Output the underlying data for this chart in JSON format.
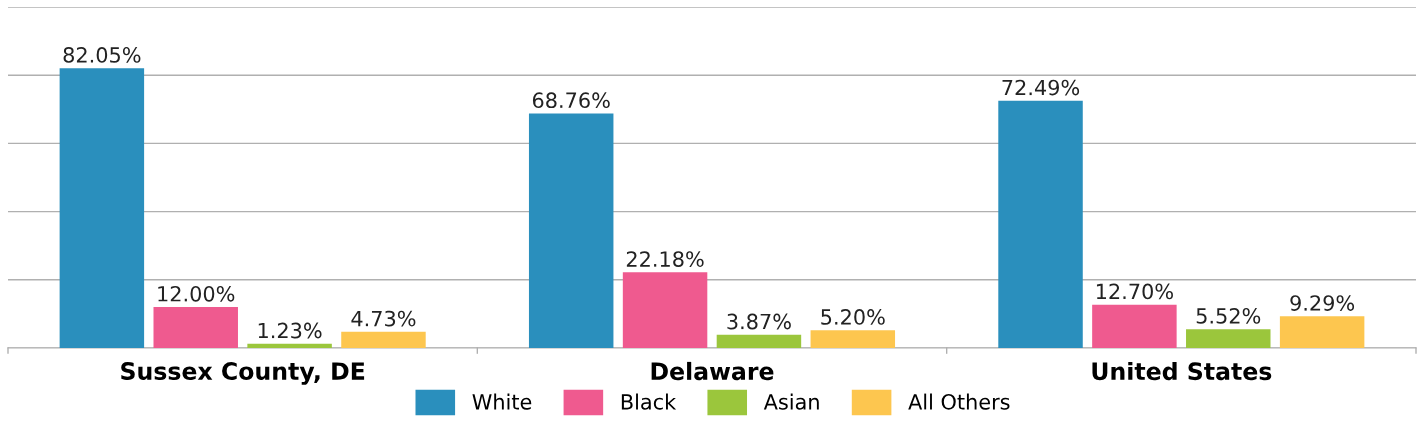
{
  "chart_data": {
    "type": "bar",
    "categories": [
      "Sussex County, DE",
      "Delaware",
      "United States"
    ],
    "series": [
      {
        "name": "White",
        "color": "#2a8fbd",
        "values": [
          82.05,
          68.76,
          72.49
        ],
        "value_labels": [
          "82.05%",
          "68.76%",
          "72.49%"
        ]
      },
      {
        "name": "Black",
        "color": "#ef5a8f",
        "values": [
          12.0,
          22.18,
          12.7
        ],
        "value_labels": [
          "12.00%",
          "22.18%",
          "12.70%"
        ]
      },
      {
        "name": "Asian",
        "color": "#9bc63c",
        "values": [
          1.23,
          3.87,
          5.52
        ],
        "value_labels": [
          "1.23%",
          "3.87%",
          "5.52%"
        ]
      },
      {
        "name": "All Others",
        "color": "#fdc64f",
        "values": [
          4.73,
          5.2,
          9.29
        ],
        "value_labels": [
          "4.73%",
          "5.20%",
          "9.29%"
        ]
      }
    ],
    "ylim": [
      0,
      100
    ],
    "yticks": [
      {
        "value": 0,
        "label": null
      },
      {
        "value": 20,
        "label": null
      },
      {
        "value": 40,
        "label": null
      },
      {
        "value": 60,
        "label": null
      },
      {
        "value": 80,
        "label": null
      },
      {
        "value": 100,
        "label": null
      }
    ],
    "tick_labels": "x",
    "grid": "y",
    "legend": "bottom"
  }
}
